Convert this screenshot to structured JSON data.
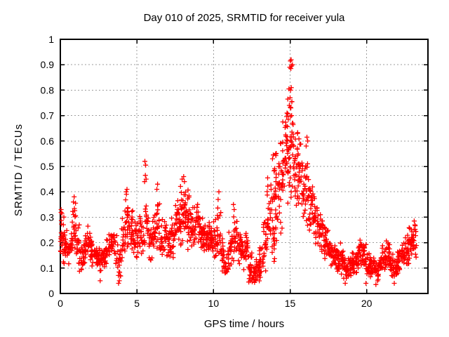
{
  "chart_data": {
    "type": "scatter",
    "title": "Day 010 of 2025, SRMTID for receiver yula",
    "xlabel": "GPS time / hours",
    "ylabel": "SRMTID / TECUs",
    "xlim": [
      0,
      24
    ],
    "ylim": [
      0,
      1
    ],
    "xticks": [
      0,
      5,
      10,
      15,
      20
    ],
    "xtick_labels": [
      "0",
      "5",
      "10",
      "15",
      "20"
    ],
    "yticks": [
      0,
      0.1,
      0.2,
      0.3,
      0.4,
      0.5,
      0.6,
      0.7,
      0.8,
      0.9,
      1
    ],
    "ytick_labels": [
      "0",
      "0.1",
      "0.2",
      "0.3",
      "0.4",
      "0.5",
      "0.6",
      "0.7",
      "0.8",
      "0.9",
      "1"
    ],
    "grid": true,
    "legend_position": "none",
    "marker": "plus",
    "marker_color": "#ff0000",
    "grid_color": "#9e9e9e",
    "axis_color": "#000000",
    "background": "#ffffff",
    "bin_width": 0.25,
    "series_name": "SRMTID",
    "density_bins": [
      [
        0.0,
        0.1,
        0.34,
        24
      ],
      [
        0.25,
        0.12,
        0.27,
        18
      ],
      [
        0.5,
        0.1,
        0.25,
        18
      ],
      [
        0.75,
        0.13,
        0.38,
        22
      ],
      [
        1.0,
        0.09,
        0.3,
        20
      ],
      [
        1.25,
        0.06,
        0.2,
        18
      ],
      [
        1.5,
        0.1,
        0.24,
        20
      ],
      [
        1.75,
        0.12,
        0.28,
        20
      ],
      [
        2.0,
        0.1,
        0.22,
        20
      ],
      [
        2.25,
        0.1,
        0.2,
        18
      ],
      [
        2.5,
        0.06,
        0.19,
        18
      ],
      [
        2.75,
        0.08,
        0.2,
        18
      ],
      [
        3.0,
        0.1,
        0.24,
        18
      ],
      [
        3.25,
        0.1,
        0.27,
        18
      ],
      [
        3.5,
        0.08,
        0.3,
        14
      ],
      [
        3.75,
        0.03,
        0.26,
        14
      ],
      [
        4.0,
        0.1,
        0.36,
        20
      ],
      [
        4.25,
        0.14,
        0.42,
        22
      ],
      [
        4.5,
        0.15,
        0.35,
        20
      ],
      [
        4.75,
        0.12,
        0.3,
        18
      ],
      [
        5.0,
        0.14,
        0.32,
        18
      ],
      [
        5.25,
        0.12,
        0.34,
        16
      ],
      [
        5.5,
        0.14,
        0.46,
        16
      ],
      [
        5.75,
        0.12,
        0.28,
        16
      ],
      [
        6.0,
        0.14,
        0.34,
        18
      ],
      [
        6.25,
        0.15,
        0.41,
        18
      ],
      [
        6.5,
        0.12,
        0.3,
        18
      ],
      [
        6.75,
        0.14,
        0.3,
        18
      ],
      [
        7.0,
        0.12,
        0.28,
        18
      ],
      [
        7.25,
        0.14,
        0.32,
        20
      ],
      [
        7.5,
        0.17,
        0.38,
        22
      ],
      [
        7.75,
        0.18,
        0.44,
        24
      ],
      [
        8.0,
        0.19,
        0.44,
        24
      ],
      [
        8.25,
        0.15,
        0.42,
        22
      ],
      [
        8.5,
        0.15,
        0.35,
        20
      ],
      [
        8.75,
        0.17,
        0.37,
        20
      ],
      [
        9.0,
        0.15,
        0.33,
        20
      ],
      [
        9.25,
        0.14,
        0.33,
        20
      ],
      [
        9.5,
        0.16,
        0.3,
        20
      ],
      [
        9.75,
        0.14,
        0.28,
        20
      ],
      [
        10.0,
        0.12,
        0.3,
        20
      ],
      [
        10.25,
        0.09,
        0.36,
        18
      ],
      [
        10.5,
        0.06,
        0.24,
        18
      ],
      [
        10.75,
        0.05,
        0.2,
        18
      ],
      [
        11.0,
        0.08,
        0.28,
        18
      ],
      [
        11.25,
        0.09,
        0.33,
        18
      ],
      [
        11.5,
        0.1,
        0.3,
        18
      ],
      [
        11.75,
        0.08,
        0.25,
        18
      ],
      [
        12.0,
        0.08,
        0.29,
        18
      ],
      [
        12.25,
        0.05,
        0.18,
        18
      ],
      [
        12.5,
        0.03,
        0.12,
        18
      ],
      [
        12.75,
        0.04,
        0.14,
        18
      ],
      [
        13.0,
        0.06,
        0.2,
        18
      ],
      [
        13.25,
        0.08,
        0.32,
        20
      ],
      [
        13.5,
        0.1,
        0.46,
        22
      ],
      [
        13.75,
        0.08,
        0.55,
        24
      ],
      [
        14.0,
        0.18,
        0.6,
        24
      ],
      [
        14.25,
        0.22,
        0.66,
        24
      ],
      [
        14.5,
        0.28,
        0.73,
        24
      ],
      [
        14.75,
        0.32,
        0.8,
        24
      ],
      [
        15.0,
        0.35,
        0.82,
        26
      ],
      [
        15.25,
        0.32,
        0.72,
        22
      ],
      [
        15.5,
        0.3,
        0.63,
        22
      ],
      [
        15.75,
        0.27,
        0.55,
        20
      ],
      [
        16.0,
        0.24,
        0.58,
        20
      ],
      [
        16.25,
        0.22,
        0.46,
        20
      ],
      [
        16.5,
        0.19,
        0.4,
        20
      ],
      [
        16.75,
        0.17,
        0.35,
        20
      ],
      [
        17.0,
        0.14,
        0.3,
        20
      ],
      [
        17.25,
        0.12,
        0.26,
        20
      ],
      [
        17.5,
        0.1,
        0.22,
        20
      ],
      [
        17.75,
        0.08,
        0.2,
        20
      ],
      [
        18.0,
        0.07,
        0.18,
        20
      ],
      [
        18.25,
        0.06,
        0.22,
        20
      ],
      [
        18.5,
        0.05,
        0.16,
        20
      ],
      [
        18.75,
        0.05,
        0.15,
        20
      ],
      [
        19.0,
        0.06,
        0.17,
        20
      ],
      [
        19.25,
        0.08,
        0.19,
        20
      ],
      [
        19.5,
        0.09,
        0.22,
        20
      ],
      [
        19.75,
        0.08,
        0.2,
        20
      ],
      [
        20.0,
        0.06,
        0.18,
        20
      ],
      [
        20.25,
        0.05,
        0.15,
        20
      ],
      [
        20.5,
        0.04,
        0.14,
        20
      ],
      [
        20.75,
        0.06,
        0.16,
        20
      ],
      [
        21.0,
        0.08,
        0.2,
        20
      ],
      [
        21.25,
        0.09,
        0.22,
        20
      ],
      [
        21.5,
        0.06,
        0.17,
        20
      ],
      [
        21.75,
        0.05,
        0.15,
        20
      ],
      [
        22.0,
        0.07,
        0.18,
        20
      ],
      [
        22.25,
        0.1,
        0.21,
        20
      ],
      [
        22.5,
        0.11,
        0.24,
        20
      ],
      [
        22.75,
        0.12,
        0.27,
        22
      ],
      [
        23.0,
        0.13,
        0.28,
        18
      ]
    ],
    "peak_points": [
      [
        15.02,
        0.915
      ],
      [
        15.07,
        0.92
      ],
      [
        15.1,
        0.895
      ],
      [
        14.98,
        0.89
      ],
      [
        15.15,
        0.9
      ],
      [
        15.05,
        0.885
      ],
      [
        14.92,
        0.805
      ],
      [
        15.03,
        0.8
      ],
      [
        15.08,
        0.81
      ],
      [
        14.85,
        0.765
      ],
      [
        15.0,
        0.77
      ],
      [
        15.12,
        0.755
      ],
      [
        14.95,
        0.74
      ],
      [
        15.05,
        0.73
      ],
      [
        14.8,
        0.71
      ],
      [
        15.1,
        0.7
      ],
      [
        14.88,
        0.685
      ],
      [
        15.18,
        0.67
      ],
      [
        5.52,
        0.52
      ],
      [
        5.57,
        0.505
      ],
      [
        5.55,
        0.465
      ],
      [
        5.6,
        0.45
      ],
      [
        5.5,
        0.44
      ],
      [
        8.05,
        0.46
      ],
      [
        8.1,
        0.44
      ],
      [
        7.95,
        0.45
      ],
      [
        4.35,
        0.41
      ],
      [
        4.3,
        0.4
      ],
      [
        10.35,
        0.4
      ],
      [
        10.3,
        0.37
      ],
      [
        6.35,
        0.43
      ],
      [
        6.3,
        0.41
      ],
      [
        16.1,
        0.615
      ],
      [
        16.15,
        0.6
      ],
      [
        16.05,
        0.58
      ],
      [
        11.3,
        0.35
      ],
      [
        11.35,
        0.33
      ],
      [
        0.05,
        0.33
      ],
      [
        0.1,
        0.315
      ],
      [
        0.9,
        0.38
      ],
      [
        0.85,
        0.36
      ],
      [
        13.9,
        0.545
      ],
      [
        13.85,
        0.53
      ],
      [
        3.8,
        0.04
      ],
      [
        3.85,
        0.05
      ],
      [
        3.9,
        0.07
      ],
      [
        2.6,
        0.05
      ],
      [
        12.3,
        0.045
      ],
      [
        18.6,
        0.04
      ],
      [
        20.6,
        0.035
      ],
      [
        21.8,
        0.04
      ],
      [
        12.4,
        0.05
      ],
      [
        19.95,
        0.04
      ],
      [
        23.1,
        0.285
      ],
      [
        23.15,
        0.27
      ]
    ]
  }
}
